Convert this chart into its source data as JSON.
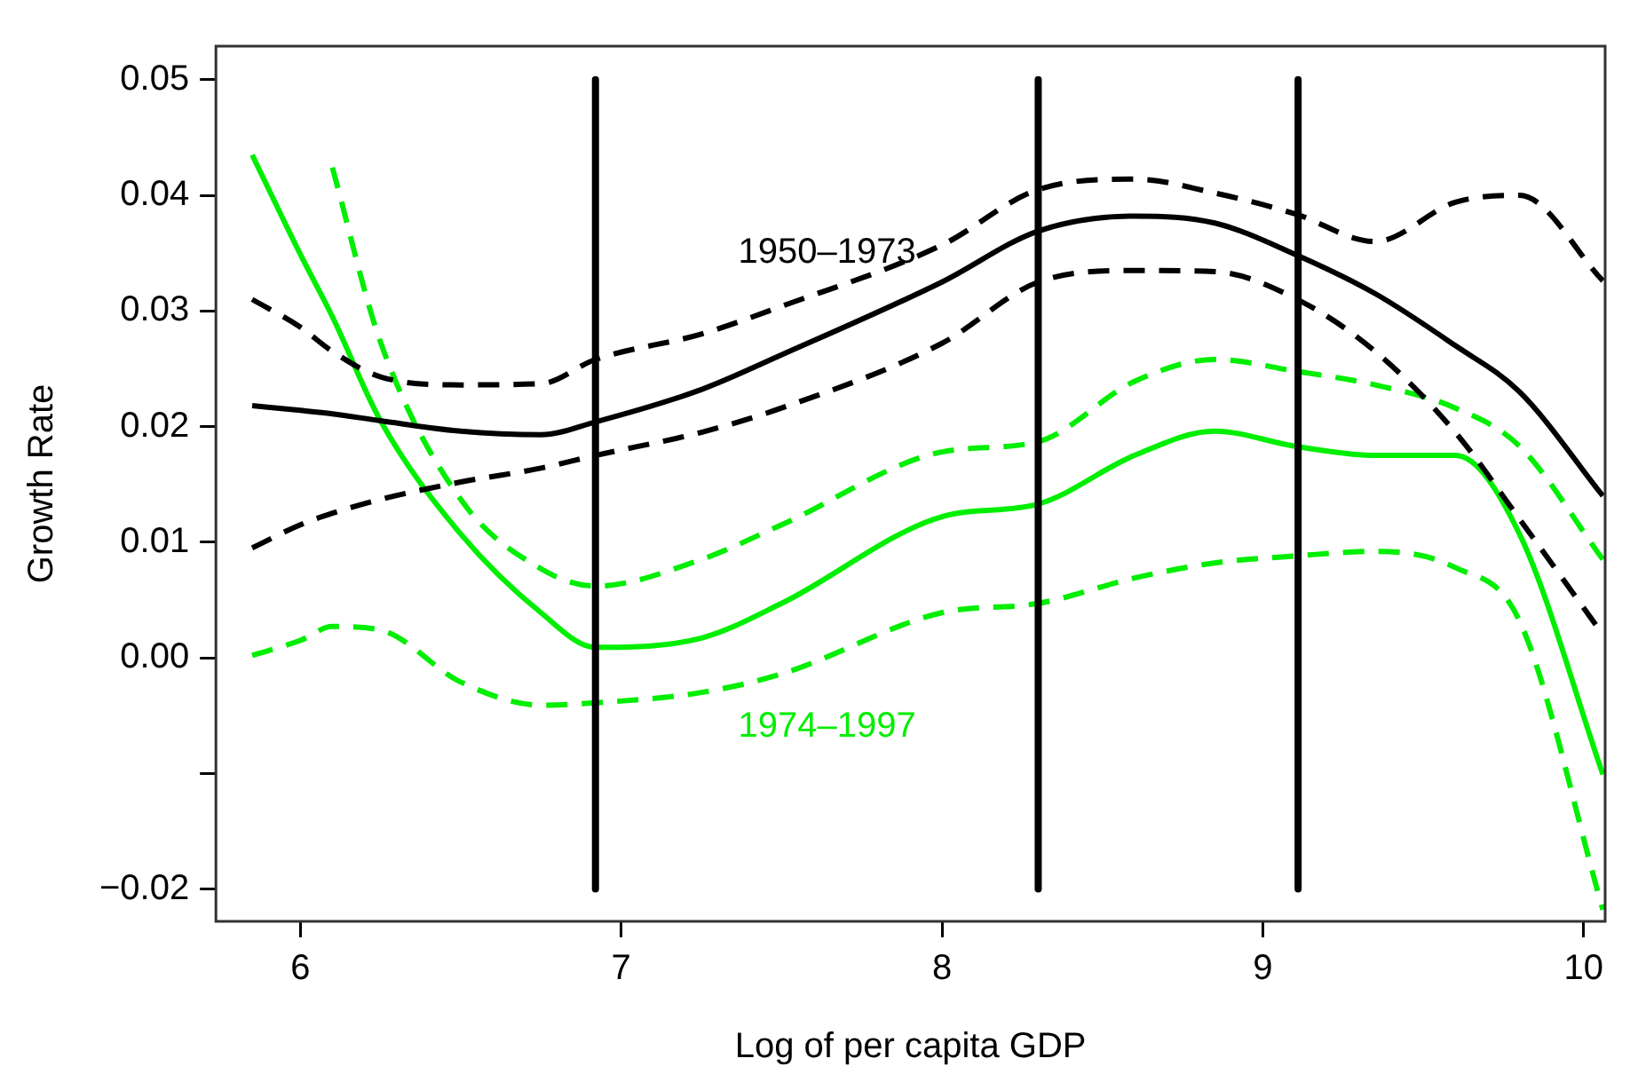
{
  "chart_data": {
    "type": "line",
    "xlabel": "Log of per capita GDP",
    "ylabel": "Growth Rate",
    "x": [
      5.85,
      6.0,
      6.1,
      6.25,
      6.5,
      6.75,
      6.92,
      7.25,
      7.5,
      8.0,
      8.3,
      8.6,
      8.85,
      9.1,
      9.35,
      9.6,
      9.8,
      10.06
    ],
    "series": [
      {
        "name": "1950–1973",
        "color": "#000000",
        "line_style": "solid",
        "values": [
          0.0218,
          0.0214,
          0.0211,
          0.0205,
          0.0196,
          0.0193,
          0.0204,
          0.0232,
          0.0262,
          0.0325,
          0.0369,
          0.0382,
          0.0376,
          0.0349,
          0.0315,
          0.027,
          0.023,
          0.014
        ]
      },
      {
        "color": "#000000",
        "line_style": "dashed",
        "values": [
          0.031,
          0.0286,
          0.0265,
          0.0243,
          0.0236,
          0.0237,
          0.0258,
          0.028,
          0.0304,
          0.0357,
          0.0405,
          0.0414,
          0.0402,
          0.0384,
          0.036,
          0.0394,
          0.04,
          0.0326
        ]
      },
      {
        "color": "#000000",
        "line_style": "dashed",
        "values": [
          0.0095,
          0.0115,
          0.0125,
          0.0137,
          0.0152,
          0.0164,
          0.0175,
          0.0195,
          0.0216,
          0.0272,
          0.0325,
          0.0335,
          0.0334,
          0.0311,
          0.0265,
          0.0195,
          0.012,
          0.002
        ]
      },
      {
        "name": "1974–1997",
        "color": "#00ee00",
        "line_style": "solid",
        "values": [
          0.0435,
          0.0349,
          0.0295,
          0.0205,
          0.0107,
          0.0039,
          0.0009,
          0.0017,
          0.0047,
          0.0122,
          0.0133,
          0.0175,
          0.0196,
          0.0183,
          0.0175,
          0.0175,
          0.0107,
          -0.0101
        ]
      },
      {
        "color": "#00ee00",
        "line_style": "dashed",
        "values": [
          null,
          null,
          0.0424,
          0.0273,
          0.0137,
          0.0077,
          0.0062,
          0.0085,
          0.0115,
          0.0178,
          0.0187,
          0.0239,
          0.0258,
          0.0248,
          0.0236,
          0.0216,
          0.0183,
          0.0085
        ]
      },
      {
        "color": "#00ee00",
        "line_style": "dashed",
        "values": [
          0.0002,
          0.0015,
          0.0027,
          0.0024,
          -0.0021,
          -0.0041,
          -0.0039,
          -0.003,
          -0.0014,
          0.0039,
          0.0047,
          0.0069,
          0.0082,
          0.0088,
          0.0092,
          0.0078,
          0.0032,
          -0.0218
        ]
      }
    ],
    "ref_lines": [
      {
        "axis": "x",
        "value": 6.92,
        "color": "#000000"
      },
      {
        "axis": "x",
        "value": 8.3,
        "color": "#000000"
      },
      {
        "axis": "x",
        "value": 9.11,
        "color": "#000000"
      }
    ],
    "xlim": [
      5.737,
      10.067
    ],
    "xticks": [
      6,
      7,
      8,
      9,
      10
    ],
    "ylim": [
      -0.0228,
      0.0529
    ],
    "yticks": [
      0.05,
      0.04,
      0.03,
      0.02,
      0.01,
      {
        "value": 0,
        "label": "0.00"
      },
      {
        "value": -0.01,
        "label": null
      },
      {
        "value": -0.02,
        "label": "−0.02"
      }
    ],
    "grid": false,
    "legend": false,
    "marker": "none"
  }
}
